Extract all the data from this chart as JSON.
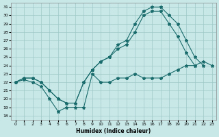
{
  "xlabel": "Humidex (Indice chaleur)",
  "xlim": [
    -0.5,
    23.5
  ],
  "ylim": [
    17.5,
    31.5
  ],
  "yticks": [
    18,
    19,
    20,
    21,
    22,
    23,
    24,
    25,
    26,
    27,
    28,
    29,
    30,
    31
  ],
  "xticks": [
    0,
    1,
    2,
    3,
    4,
    5,
    6,
    7,
    8,
    9,
    10,
    11,
    12,
    13,
    14,
    15,
    16,
    17,
    18,
    19,
    20,
    21,
    22,
    23
  ],
  "bg_color": "#c8e8e8",
  "grid_color": "#a0c8c8",
  "line_color": "#1a6b6b",
  "line1_x": [
    0,
    1,
    2,
    3,
    4,
    5,
    6,
    7,
    8,
    9,
    10,
    11,
    12,
    13,
    14,
    15,
    16,
    17,
    18,
    19,
    20,
    21,
    22,
    23
  ],
  "line1_y": [
    22,
    22.3,
    22,
    21.5,
    20,
    18.5,
    19,
    19,
    19,
    23,
    22,
    22,
    22.5,
    22.5,
    23,
    22.5,
    22.5,
    22.5,
    23,
    23.5,
    24,
    24,
    24.5,
    24
  ],
  "line2_x": [
    0,
    1,
    2,
    3,
    4,
    5,
    6,
    7,
    8,
    9,
    10,
    11,
    12,
    13,
    14,
    15,
    16,
    17,
    18,
    19,
    20,
    21
  ],
  "line2_y": [
    22,
    22.5,
    22.5,
    22,
    21,
    20,
    19.5,
    19.5,
    22,
    23.5,
    24.5,
    25,
    26,
    26.5,
    28,
    30,
    30.5,
    30.5,
    29,
    27.5,
    25.5,
    24
  ],
  "line3_x": [
    0,
    1,
    2,
    3,
    4,
    5,
    6,
    7,
    8,
    9,
    10,
    11,
    12,
    13,
    14,
    15,
    16,
    17,
    18,
    19,
    20,
    21,
    22
  ],
  "line3_y": [
    22,
    22.5,
    22.5,
    22,
    21,
    20,
    19.5,
    19.5,
    22,
    23.5,
    24.5,
    25,
    26.5,
    27,
    29,
    30.5,
    31,
    31,
    30,
    29,
    27,
    25,
    24
  ]
}
